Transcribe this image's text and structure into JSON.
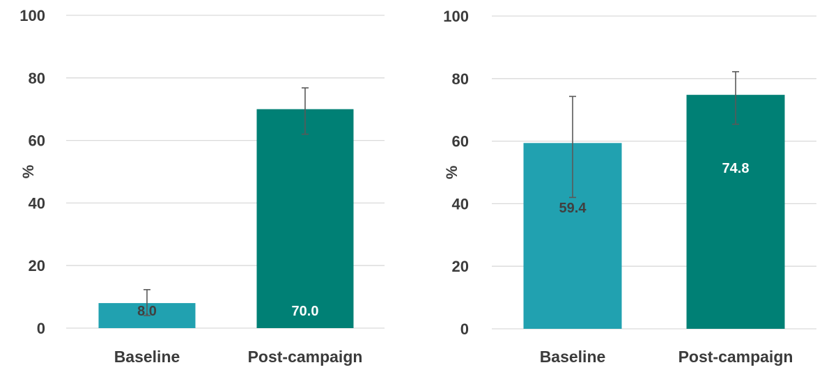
{
  "chart_data": [
    {
      "type": "bar",
      "title": "",
      "xlabel": "",
      "ylabel": "%",
      "ylim": [
        0,
        100
      ],
      "yticks": [
        0,
        20,
        40,
        60,
        80,
        100
      ],
      "grid": true,
      "categories": [
        "Baseline",
        "Post-campaign"
      ],
      "values": [
        8.0,
        70.0
      ],
      "value_labels": [
        "8.0",
        "70.0"
      ],
      "error_bars": [
        [
          4.0,
          12.3
        ],
        [
          62.0,
          76.8
        ]
      ],
      "colors": [
        "#21A1B0",
        "#008075"
      ],
      "value_label_colors": [
        "#404040",
        "#FFFFFF"
      ]
    },
    {
      "type": "bar",
      "title": "",
      "xlabel": "",
      "ylabel": "%",
      "ylim": [
        0,
        100
      ],
      "yticks": [
        0,
        20,
        40,
        60,
        80,
        100
      ],
      "grid": true,
      "categories": [
        "Baseline",
        "Post-campaign"
      ],
      "values": [
        59.4,
        74.8
      ],
      "value_labels": [
        "59.4",
        "74.8"
      ],
      "error_bars": [
        [
          42.0,
          74.3
        ],
        [
          65.4,
          82.2
        ]
      ],
      "colors": [
        "#21A1B0",
        "#008075"
      ],
      "value_label_colors": [
        "#404040",
        "#FFFFFF"
      ]
    }
  ],
  "style": {
    "grid_color": "#D9D9D9",
    "error_bar_color": "#595959",
    "text_color": "#3B3B3B"
  }
}
